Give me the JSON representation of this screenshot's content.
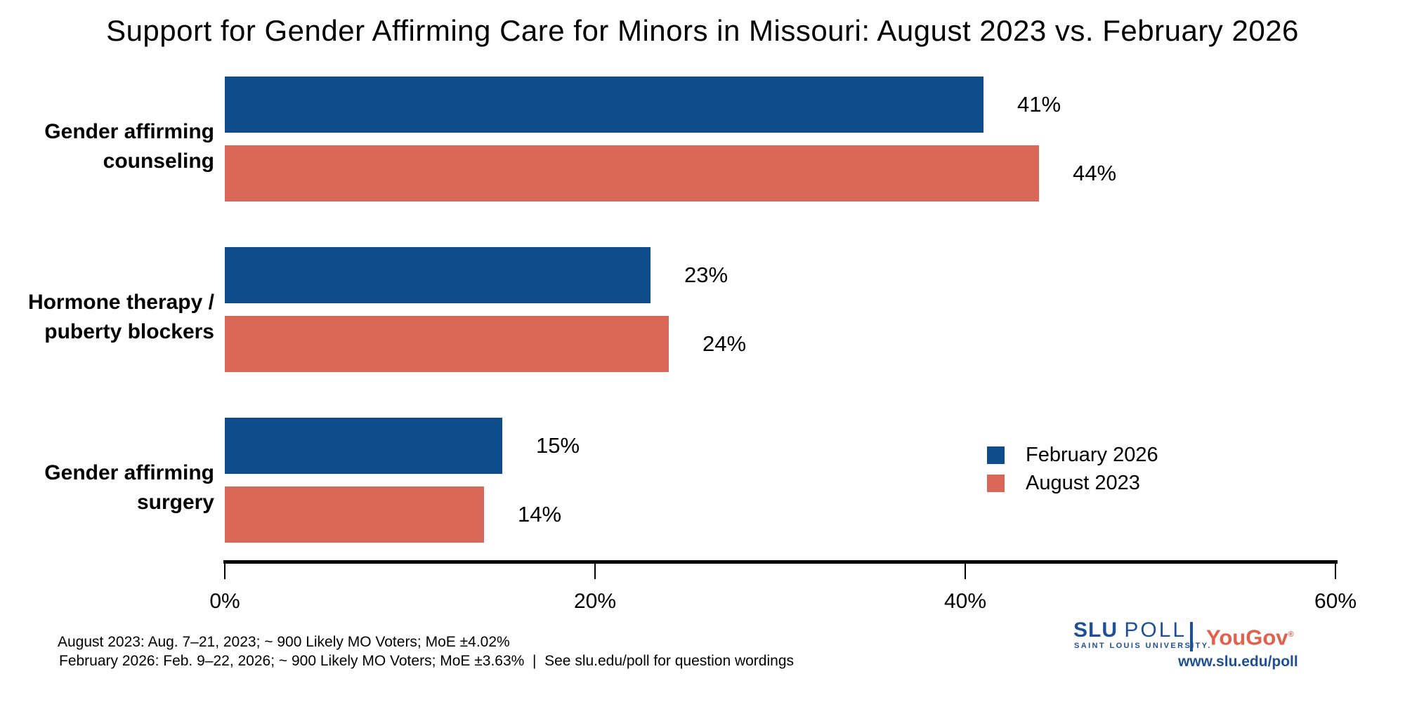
{
  "title": "Support for Gender Affirming Care for Minors in Missouri: August 2023 vs. February 2026",
  "chart_data": {
    "type": "bar",
    "orientation": "horizontal",
    "title": "Support for Gender Affirming Care for Minors in Missouri: August 2023 vs. February 2026",
    "categories": [
      "Gender affirming counseling",
      "Hormone therapy / puberty blockers",
      "Gender affirming surgery"
    ],
    "category_lines": [
      [
        "Gender affirming",
        "counseling"
      ],
      [
        "Hormone therapy /",
        "puberty blockers"
      ],
      [
        "Gender affirming",
        "surgery"
      ]
    ],
    "series": [
      {
        "name": "February 2026",
        "color": "#0F4C8C",
        "values": [
          41,
          23,
          15
        ],
        "labels": [
          "41%",
          "23%",
          "15%"
        ]
      },
      {
        "name": "August 2023",
        "color": "#D96757",
        "values": [
          44,
          24,
          14
        ],
        "labels": [
          "44%",
          "24%",
          "14%"
        ]
      }
    ],
    "xlim": [
      0,
      60
    ],
    "x_ticks": [
      "0%",
      "20%",
      "40%",
      "60%"
    ],
    "x_tick_values": [
      0,
      20,
      40,
      60
    ],
    "grid": "off",
    "legend_position": "right-middle",
    "value_labels": "outside-end"
  },
  "footnotes": {
    "line1": "August 2023: Aug. 7–21, 2023; ~ 900 Likely MO Voters; MoE ±4.02%",
    "line2": "February 2026: Feb. 9–22, 2026; ~ 900 Likely MO Voters; MoE ±3.63%  |  See slu.edu/poll for question wordings"
  },
  "branding": {
    "slu_bold": "SLU",
    "slu_light": "POLL",
    "slu_sub": "SAINT LOUIS UNIVERSITY.",
    "yougov": "YouGov",
    "yougov_mark": "®",
    "url": "www.slu.edu/poll",
    "slu_blue": "#1F4F96",
    "yougov_red": "#E2604C"
  }
}
